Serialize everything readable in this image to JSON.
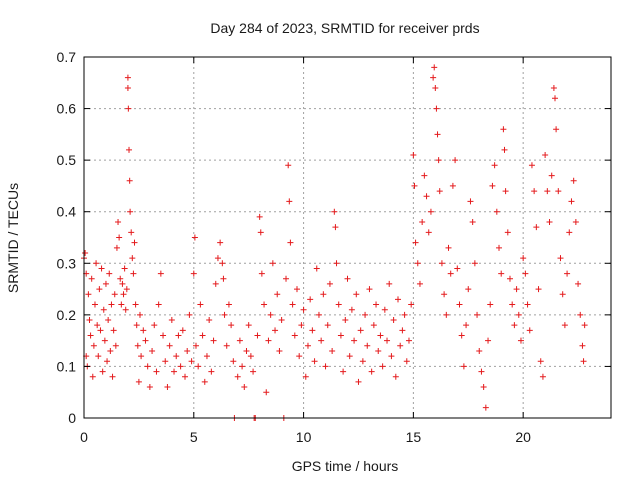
{
  "chart_data": {
    "type": "scatter",
    "title": "Day 284 of 2023, SRMTID for receiver prds",
    "xlabel": "GPS time / hours",
    "ylabel": "SRMTID / TECUs",
    "xlim": [
      0,
      24
    ],
    "ylim": [
      0,
      0.7
    ],
    "xticks": [
      "0",
      "5",
      "10",
      "15",
      "20"
    ],
    "yticks": [
      "0",
      "0.1",
      "0.2",
      "0.3",
      "0.4",
      "0.5",
      "0.6",
      "0.7"
    ],
    "grid": true,
    "marker": "plus",
    "color": "#e41a1c",
    "series": [
      {
        "name": "SRMTID",
        "points": [
          [
            0.0,
            0.31
          ],
          [
            0.05,
            0.32
          ],
          [
            0.1,
            0.28
          ],
          [
            0.1,
            0.12
          ],
          [
            0.15,
            0.1
          ],
          [
            0.2,
            0.24
          ],
          [
            0.25,
            0.19
          ],
          [
            0.3,
            0.16
          ],
          [
            0.35,
            0.27
          ],
          [
            0.4,
            0.08
          ],
          [
            0.45,
            0.14
          ],
          [
            0.5,
            0.22
          ],
          [
            0.55,
            0.3
          ],
          [
            0.6,
            0.18
          ],
          [
            0.65,
            0.12
          ],
          [
            0.7,
            0.25
          ],
          [
            0.75,
            0.17
          ],
          [
            0.8,
            0.29
          ],
          [
            0.85,
            0.09
          ],
          [
            0.9,
            0.21
          ],
          [
            0.95,
            0.15
          ],
          [
            1.0,
            0.26
          ],
          [
            1.05,
            0.11
          ],
          [
            1.1,
            0.19
          ],
          [
            1.15,
            0.28
          ],
          [
            1.2,
            0.13
          ],
          [
            1.25,
            0.22
          ],
          [
            1.3,
            0.08
          ],
          [
            1.35,
            0.17
          ],
          [
            1.4,
            0.24
          ],
          [
            1.45,
            0.14
          ],
          [
            1.5,
            0.33
          ],
          [
            1.55,
            0.38
          ],
          [
            1.6,
            0.35
          ],
          [
            1.65,
            0.27
          ],
          [
            1.7,
            0.22
          ],
          [
            1.75,
            0.26
          ],
          [
            1.8,
            0.24
          ],
          [
            1.85,
            0.29
          ],
          [
            1.9,
            0.21
          ],
          [
            1.95,
            0.25
          ],
          [
            2.0,
            0.66
          ],
          [
            2.0,
            0.64
          ],
          [
            2.02,
            0.6
          ],
          [
            2.05,
            0.52
          ],
          [
            2.08,
            0.46
          ],
          [
            2.1,
            0.4
          ],
          [
            2.15,
            0.36
          ],
          [
            2.2,
            0.31
          ],
          [
            2.25,
            0.28
          ],
          [
            2.3,
            0.34
          ],
          [
            2.35,
            0.22
          ],
          [
            2.4,
            0.18
          ],
          [
            2.45,
            0.14
          ],
          [
            2.5,
            0.07
          ],
          [
            2.55,
            0.2
          ],
          [
            2.6,
            0.12
          ],
          [
            2.7,
            0.17
          ],
          [
            2.8,
            0.15
          ],
          [
            2.9,
            0.1
          ],
          [
            3.0,
            0.06
          ],
          [
            3.1,
            0.13
          ],
          [
            3.2,
            0.18
          ],
          [
            3.3,
            0.09
          ],
          [
            3.4,
            0.22
          ],
          [
            3.5,
            0.28
          ],
          [
            3.6,
            0.16
          ],
          [
            3.7,
            0.11
          ],
          [
            3.8,
            0.06
          ],
          [
            3.9,
            0.14
          ],
          [
            4.0,
            0.19
          ],
          [
            4.1,
            0.09
          ],
          [
            4.2,
            0.12
          ],
          [
            4.3,
            0.16
          ],
          [
            4.4,
            0.1
          ],
          [
            4.5,
            0.17
          ],
          [
            4.6,
            0.08
          ],
          [
            4.7,
            0.13
          ],
          [
            4.8,
            0.2
          ],
          [
            4.9,
            0.11
          ],
          [
            5.0,
            0.28
          ],
          [
            5.05,
            0.35
          ],
          [
            5.1,
            0.14
          ],
          [
            5.2,
            0.1
          ],
          [
            5.3,
            0.22
          ],
          [
            5.4,
            0.16
          ],
          [
            5.5,
            0.07
          ],
          [
            5.6,
            0.12
          ],
          [
            5.7,
            0.19
          ],
          [
            5.8,
            0.09
          ],
          [
            5.9,
            0.15
          ],
          [
            6.0,
            0.26
          ],
          [
            6.1,
            0.31
          ],
          [
            6.2,
            0.34
          ],
          [
            6.3,
            0.3
          ],
          [
            6.35,
            0.27
          ],
          [
            6.4,
            0.2
          ],
          [
            6.5,
            0.14
          ],
          [
            6.6,
            0.22
          ],
          [
            6.7,
            0.18
          ],
          [
            6.8,
            0.11
          ],
          [
            6.85,
            0.0
          ],
          [
            7.0,
            0.08
          ],
          [
            7.1,
            0.15
          ],
          [
            7.2,
            0.1
          ],
          [
            7.3,
            0.06
          ],
          [
            7.4,
            0.13
          ],
          [
            7.5,
            0.18
          ],
          [
            7.6,
            0.12
          ],
          [
            7.7,
            0.09
          ],
          [
            7.75,
            0.0
          ],
          [
            7.8,
            0.0
          ],
          [
            7.9,
            0.16
          ],
          [
            8.0,
            0.39
          ],
          [
            8.05,
            0.36
          ],
          [
            8.1,
            0.28
          ],
          [
            8.2,
            0.22
          ],
          [
            8.3,
            0.05
          ],
          [
            8.4,
            0.15
          ],
          [
            8.5,
            0.2
          ],
          [
            8.6,
            0.3
          ],
          [
            8.7,
            0.17
          ],
          [
            8.8,
            0.24
          ],
          [
            8.9,
            0.13
          ],
          [
            9.0,
            0.19
          ],
          [
            9.1,
            0.0
          ],
          [
            9.2,
            0.27
          ],
          [
            9.3,
            0.49
          ],
          [
            9.35,
            0.42
          ],
          [
            9.4,
            0.34
          ],
          [
            9.5,
            0.22
          ],
          [
            9.6,
            0.16
          ],
          [
            9.7,
            0.25
          ],
          [
            9.8,
            0.12
          ],
          [
            9.9,
            0.18
          ],
          [
            10.0,
            0.21
          ],
          [
            10.1,
            0.08
          ],
          [
            10.2,
            0.14
          ],
          [
            10.3,
            0.23
          ],
          [
            10.4,
            0.17
          ],
          [
            10.5,
            0.11
          ],
          [
            10.6,
            0.29
          ],
          [
            10.7,
            0.2
          ],
          [
            10.8,
            0.15
          ],
          [
            10.9,
            0.24
          ],
          [
            11.0,
            0.1
          ],
          [
            11.1,
            0.18
          ],
          [
            11.2,
            0.26
          ],
          [
            11.3,
            0.13
          ],
          [
            11.4,
            0.4
          ],
          [
            11.45,
            0.37
          ],
          [
            11.5,
            0.3
          ],
          [
            11.6,
            0.22
          ],
          [
            11.7,
            0.16
          ],
          [
            11.8,
            0.09
          ],
          [
            11.9,
            0.19
          ],
          [
            12.0,
            0.27
          ],
          [
            12.1,
            0.12
          ],
          [
            12.2,
            0.21
          ],
          [
            12.3,
            0.15
          ],
          [
            12.4,
            0.24
          ],
          [
            12.5,
            0.07
          ],
          [
            12.6,
            0.17
          ],
          [
            12.7,
            0.11
          ],
          [
            12.8,
            0.2
          ],
          [
            12.9,
            0.14
          ],
          [
            13.0,
            0.25
          ],
          [
            13.1,
            0.09
          ],
          [
            13.2,
            0.18
          ],
          [
            13.3,
            0.22
          ],
          [
            13.4,
            0.13
          ],
          [
            13.5,
            0.16
          ],
          [
            13.6,
            0.1
          ],
          [
            13.7,
            0.21
          ],
          [
            13.8,
            0.15
          ],
          [
            13.9,
            0.26
          ],
          [
            14.0,
            0.12
          ],
          [
            14.1,
            0.19
          ],
          [
            14.2,
            0.08
          ],
          [
            14.3,
            0.23
          ],
          [
            14.4,
            0.14
          ],
          [
            14.5,
            0.17
          ],
          [
            14.6,
            0.2
          ],
          [
            14.7,
            0.11
          ],
          [
            14.8,
            0.15
          ],
          [
            14.9,
            0.22
          ],
          [
            15.0,
            0.51
          ],
          [
            15.05,
            0.45
          ],
          [
            15.1,
            0.34
          ],
          [
            15.2,
            0.3
          ],
          [
            15.3,
            0.26
          ],
          [
            15.4,
            0.38
          ],
          [
            15.5,
            0.47
          ],
          [
            15.6,
            0.43
          ],
          [
            15.7,
            0.36
          ],
          [
            15.8,
            0.4
          ],
          [
            15.9,
            0.66
          ],
          [
            15.95,
            0.68
          ],
          [
            16.0,
            0.64
          ],
          [
            16.05,
            0.6
          ],
          [
            16.1,
            0.55
          ],
          [
            16.15,
            0.5
          ],
          [
            16.2,
            0.44
          ],
          [
            16.3,
            0.3
          ],
          [
            16.4,
            0.24
          ],
          [
            16.5,
            0.2
          ],
          [
            16.6,
            0.33
          ],
          [
            16.7,
            0.28
          ],
          [
            16.8,
            0.45
          ],
          [
            16.9,
            0.5
          ],
          [
            17.0,
            0.29
          ],
          [
            17.1,
            0.22
          ],
          [
            17.2,
            0.16
          ],
          [
            17.3,
            0.1
          ],
          [
            17.4,
            0.18
          ],
          [
            17.5,
            0.25
          ],
          [
            17.6,
            0.42
          ],
          [
            17.7,
            0.38
          ],
          [
            17.8,
            0.3
          ],
          [
            17.9,
            0.2
          ],
          [
            18.0,
            0.13
          ],
          [
            18.1,
            0.09
          ],
          [
            18.2,
            0.06
          ],
          [
            18.3,
            0.02
          ],
          [
            18.4,
            0.15
          ],
          [
            18.5,
            0.22
          ],
          [
            18.6,
            0.45
          ],
          [
            18.7,
            0.49
          ],
          [
            18.8,
            0.4
          ],
          [
            18.9,
            0.33
          ],
          [
            19.0,
            0.28
          ],
          [
            19.1,
            0.56
          ],
          [
            19.15,
            0.52
          ],
          [
            19.2,
            0.44
          ],
          [
            19.3,
            0.36
          ],
          [
            19.4,
            0.27
          ],
          [
            19.5,
            0.22
          ],
          [
            19.6,
            0.18
          ],
          [
            19.7,
            0.25
          ],
          [
            19.8,
            0.2
          ],
          [
            19.9,
            0.15
          ],
          [
            20.0,
            0.31
          ],
          [
            20.1,
            0.28
          ],
          [
            20.2,
            0.22
          ],
          [
            20.3,
            0.17
          ],
          [
            20.4,
            0.49
          ],
          [
            20.5,
            0.44
          ],
          [
            20.6,
            0.37
          ],
          [
            20.7,
            0.25
          ],
          [
            20.8,
            0.11
          ],
          [
            20.9,
            0.08
          ],
          [
            21.0,
            0.51
          ],
          [
            21.1,
            0.44
          ],
          [
            21.2,
            0.38
          ],
          [
            21.3,
            0.47
          ],
          [
            21.4,
            0.64
          ],
          [
            21.45,
            0.62
          ],
          [
            21.5,
            0.56
          ],
          [
            21.6,
            0.44
          ],
          [
            21.7,
            0.31
          ],
          [
            21.8,
            0.24
          ],
          [
            21.9,
            0.18
          ],
          [
            22.0,
            0.28
          ],
          [
            22.1,
            0.36
          ],
          [
            22.2,
            0.42
          ],
          [
            22.3,
            0.46
          ],
          [
            22.4,
            0.38
          ],
          [
            22.5,
            0.26
          ],
          [
            22.6,
            0.2
          ],
          [
            22.7,
            0.14
          ],
          [
            22.75,
            0.11
          ],
          [
            22.8,
            0.18
          ]
        ]
      }
    ]
  }
}
